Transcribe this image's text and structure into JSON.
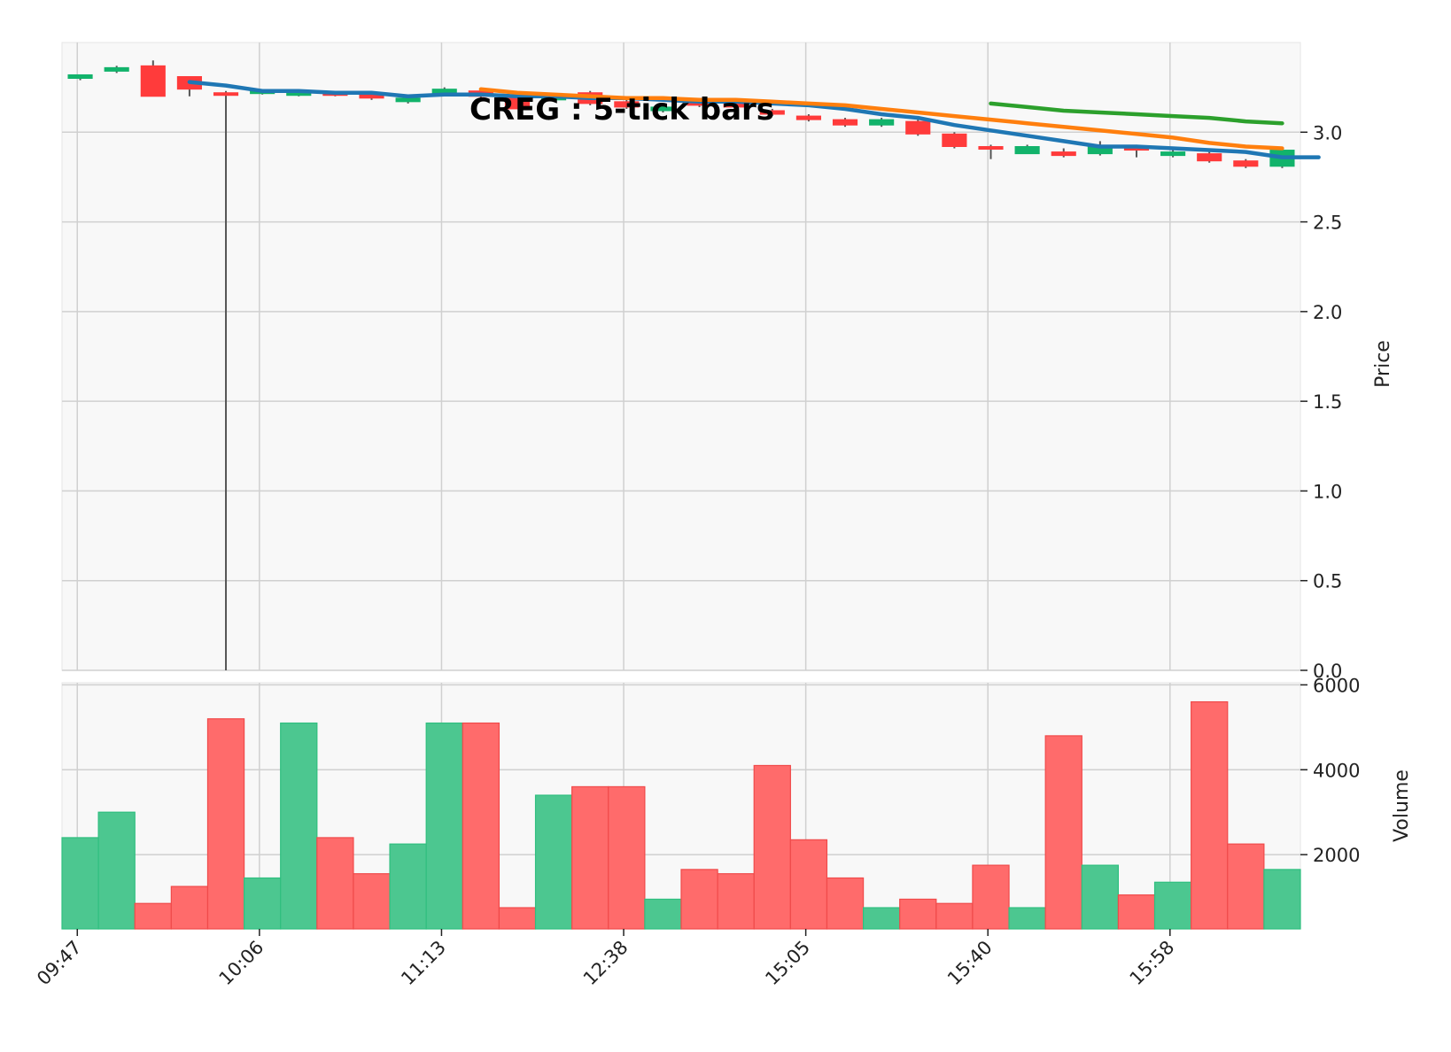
{
  "chart_data": {
    "type": "candlestick",
    "title": "CREG : 5-tick bars",
    "ylabel_price": "Price",
    "ylabel_volume": "Volume",
    "ylim_price": [
      0,
      3.5
    ],
    "ylim_volume": [
      250,
      6050
    ],
    "price_ticks": [
      "0.0",
      "0.5",
      "1.0",
      "1.5",
      "2.0",
      "2.5",
      "3.0"
    ],
    "volume_ticks": [
      "2000",
      "4000",
      "6000"
    ],
    "x_ticks": [
      {
        "index": 0,
        "label": "09:47"
      },
      {
        "index": 5,
        "label": "10:06"
      },
      {
        "index": 10,
        "label": "11:13"
      },
      {
        "index": 15,
        "label": "12:38"
      },
      {
        "index": 20,
        "label": "15:05"
      },
      {
        "index": 25,
        "label": "15:40"
      },
      {
        "index": 30,
        "label": "15:58"
      }
    ],
    "colors": {
      "up": "#12b36b",
      "down": "#ff3b3b",
      "wick": "#555555",
      "up_volume": "#4cc790",
      "down_volume": "#ff6b6b",
      "ma_short": "#1f77b4",
      "ma_mid": "#ff7f0e",
      "ma_long": "#2ca02c",
      "grid": "#d0d0d0",
      "panel": "#f8f8f8"
    },
    "candles": [
      {
        "o": 3.3,
        "h": 3.32,
        "l": 3.29,
        "c": 3.32,
        "v": 2400
      },
      {
        "o": 3.34,
        "h": 3.37,
        "l": 3.33,
        "c": 3.36,
        "v": 3000
      },
      {
        "o": 3.37,
        "h": 3.4,
        "l": 3.2,
        "c": 3.2,
        "v": 850
      },
      {
        "o": 3.31,
        "h": 3.31,
        "l": 3.2,
        "c": 3.24,
        "v": 1250
      },
      {
        "o": 3.22,
        "h": 3.23,
        "l": 0.0,
        "c": 3.21,
        "v": 5200
      },
      {
        "o": 3.22,
        "h": 3.24,
        "l": 3.21,
        "c": 3.23,
        "v": 1450
      },
      {
        "o": 3.22,
        "h": 3.23,
        "l": 3.2,
        "c": 3.22,
        "v": 5100
      },
      {
        "o": 3.22,
        "h": 3.23,
        "l": 3.2,
        "c": 3.21,
        "v": 2400
      },
      {
        "o": 3.21,
        "h": 3.22,
        "l": 3.18,
        "c": 3.19,
        "v": 1550
      },
      {
        "o": 3.17,
        "h": 3.2,
        "l": 3.16,
        "c": 3.19,
        "v": 2250
      },
      {
        "o": 3.21,
        "h": 3.25,
        "l": 3.2,
        "c": 3.24,
        "v": 5100
      },
      {
        "o": 3.23,
        "h": 3.24,
        "l": 3.19,
        "c": 3.2,
        "v": 5100
      },
      {
        "o": 3.2,
        "h": 3.21,
        "l": 3.13,
        "c": 3.13,
        "v": 750
      },
      {
        "o": 3.18,
        "h": 3.2,
        "l": 3.17,
        "c": 3.2,
        "v": 3400
      },
      {
        "o": 3.22,
        "h": 3.23,
        "l": 3.15,
        "c": 3.16,
        "v": 3600
      },
      {
        "o": 3.17,
        "h": 3.18,
        "l": 3.13,
        "c": 3.14,
        "v": 3600
      },
      {
        "o": 3.12,
        "h": 3.15,
        "l": 3.11,
        "c": 3.14,
        "v": 950
      },
      {
        "o": 3.18,
        "h": 3.19,
        "l": 3.14,
        "c": 3.15,
        "v": 1650
      },
      {
        "o": 3.16,
        "h": 3.17,
        "l": 3.13,
        "c": 3.14,
        "v": 1550
      },
      {
        "o": 3.12,
        "h": 3.13,
        "l": 3.09,
        "c": 3.1,
        "v": 4100
      },
      {
        "o": 3.09,
        "h": 3.1,
        "l": 3.06,
        "c": 3.07,
        "v": 2350
      },
      {
        "o": 3.07,
        "h": 3.08,
        "l": 3.03,
        "c": 3.04,
        "v": 1450
      },
      {
        "o": 3.04,
        "h": 3.08,
        "l": 3.03,
        "c": 3.07,
        "v": 750
      },
      {
        "o": 3.06,
        "h": 3.07,
        "l": 2.98,
        "c": 2.99,
        "v": 950
      },
      {
        "o": 2.99,
        "h": 3.0,
        "l": 2.91,
        "c": 2.92,
        "v": 850
      },
      {
        "o": 2.92,
        "h": 2.93,
        "l": 2.85,
        "c": 2.91,
        "v": 1750
      },
      {
        "o": 2.88,
        "h": 2.93,
        "l": 2.88,
        "c": 2.92,
        "v": 750
      },
      {
        "o": 2.89,
        "h": 2.91,
        "l": 2.86,
        "c": 2.87,
        "v": 4800
      },
      {
        "o": 2.88,
        "h": 2.95,
        "l": 2.87,
        "c": 2.92,
        "v": 1750
      },
      {
        "o": 2.92,
        "h": 2.93,
        "l": 2.86,
        "c": 2.9,
        "v": 1050
      },
      {
        "o": 2.87,
        "h": 2.9,
        "l": 2.86,
        "c": 2.89,
        "v": 1350
      },
      {
        "o": 2.88,
        "h": 2.89,
        "l": 2.83,
        "c": 2.84,
        "v": 5600
      },
      {
        "o": 2.84,
        "h": 2.85,
        "l": 2.8,
        "c": 2.81,
        "v": 2250
      },
      {
        "o": 2.81,
        "h": 2.91,
        "l": 2.8,
        "c": 2.9,
        "v": 1650
      }
    ],
    "moving_averages": [
      {
        "key": "ma_short",
        "start": 3,
        "values": [
          3.28,
          3.26,
          3.23,
          3.23,
          3.22,
          3.22,
          3.2,
          3.21,
          3.21,
          3.2,
          3.2,
          3.19,
          3.19,
          3.18,
          3.17,
          3.17,
          3.16,
          3.15,
          3.13,
          3.1,
          3.08,
          3.04,
          3.01,
          2.98,
          2.95,
          2.92,
          2.92,
          2.91,
          2.9,
          2.89,
          2.86,
          2.86
        ]
      },
      {
        "key": "ma_mid",
        "start": 11,
        "values": [
          3.24,
          3.22,
          3.21,
          3.2,
          3.19,
          3.19,
          3.18,
          3.18,
          3.17,
          3.16,
          3.15,
          3.13,
          3.11,
          3.09,
          3.07,
          3.05,
          3.03,
          3.01,
          2.99,
          2.97,
          2.94,
          2.92,
          2.91
        ]
      },
      {
        "key": "ma_long",
        "start": 25,
        "values": [
          3.16,
          3.14,
          3.12,
          3.11,
          3.1,
          3.09,
          3.08,
          3.06,
          3.05
        ]
      }
    ]
  }
}
